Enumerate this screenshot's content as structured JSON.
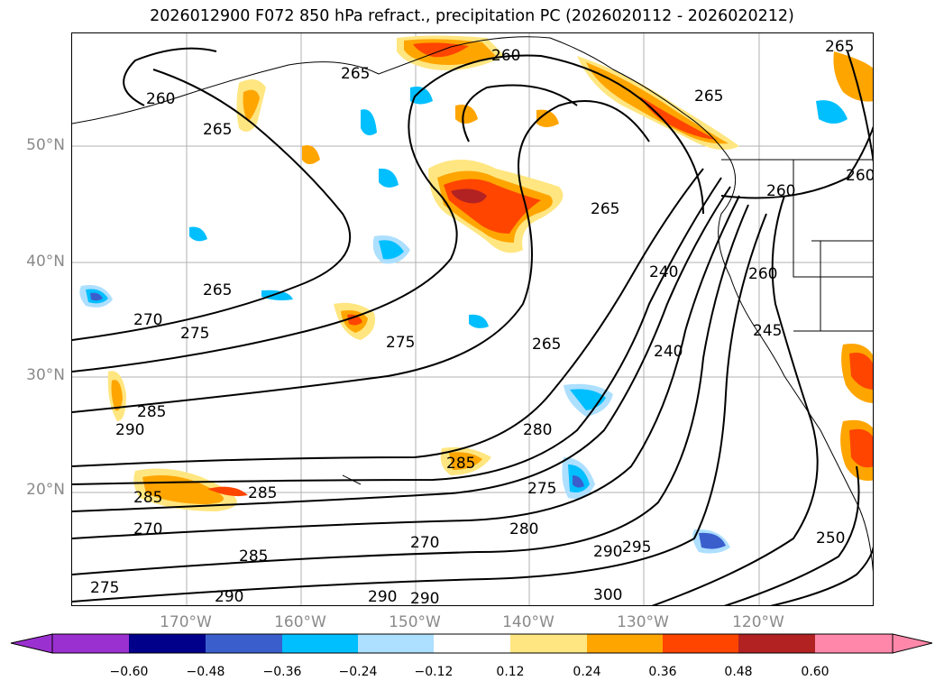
{
  "title": "2026012900 F072 850 hPa refract., precipitation PC (2026020112 - 2026020212)",
  "latitude_labels": [
    "50°N",
    "40°N",
    "30°N",
    "20°N"
  ],
  "longitude_labels": [
    "170°W",
    "160°W",
    "150°W",
    "140°W",
    "130°W",
    "120°W"
  ],
  "contour_labels": [
    "260",
    "265",
    "270",
    "275",
    "280",
    "285",
    "290",
    "295",
    "300",
    "250",
    "245",
    "240"
  ],
  "colorbar": {
    "ticks": [
      "−0.60",
      "−0.48",
      "−0.36",
      "−0.24",
      "−0.12",
      "0.12",
      "0.24",
      "0.36",
      "0.48",
      "0.60"
    ],
    "colors": [
      "#9b30d0",
      "#00008b",
      "#3a5fcd",
      "#00bfff",
      "#addfff",
      "#ffffff",
      "#ffe680",
      "#ffa500",
      "#ff4500",
      "#b22222",
      "#ff88aa"
    ]
  }
}
